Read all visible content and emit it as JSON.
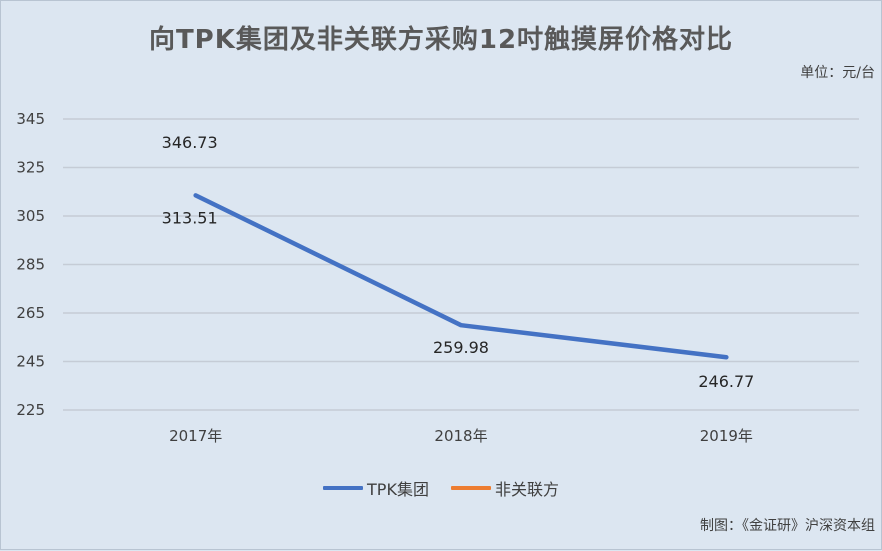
{
  "header": {
    "title": "向TPK集团及非关联方采购12吋触摸屏价格对比",
    "unit": "单位：元/台"
  },
  "footer": {
    "credit": "制图：《金证研》沪深资本组"
  },
  "chart_data": {
    "type": "line",
    "title": "向TPK集团及非关联方采购12吋触摸屏价格对比",
    "categories": [
      "2017年",
      "2018年",
      "2019年"
    ],
    "y_ticks": [
      "345",
      "325",
      "305",
      "285",
      "265",
      "245",
      "225"
    ],
    "ylim": [
      225,
      345
    ],
    "grid": true,
    "legend_position": "bottom",
    "series": [
      {
        "name": "TPK集团",
        "color": "#4472c4",
        "values": [
          313.51,
          259.98,
          246.77
        ],
        "labels": [
          "313.51",
          "259.98",
          "246.77"
        ]
      },
      {
        "name": "非关联方",
        "color": "#ed7d31",
        "values": [
          346.73,
          null,
          null
        ],
        "labels": [
          "346.73",
          "",
          ""
        ]
      }
    ]
  }
}
